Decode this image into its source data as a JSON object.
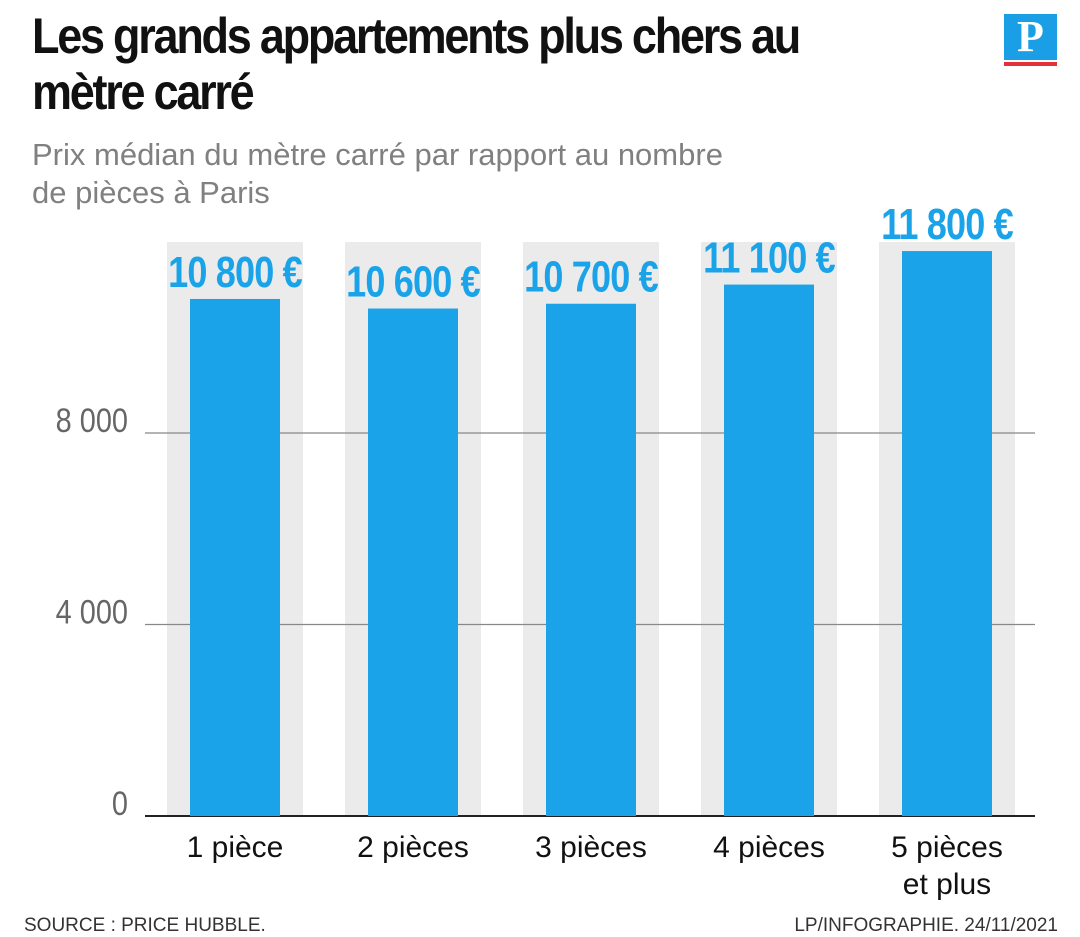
{
  "header": {
    "title": "Les grands appartements plus chers au mètre carré",
    "subtitle": "Prix médian du mètre carré par rapport au nombre de pièces à Paris"
  },
  "logo": {
    "letter": "P",
    "color": "#1a9ee5",
    "underline_color": "#e2313a"
  },
  "chart_data": {
    "type": "bar",
    "categories": [
      "1 pièce",
      "2 pièces",
      "3 pièces",
      "4 pièces",
      "5 pièces et plus"
    ],
    "values": [
      10800,
      10600,
      10700,
      11100,
      11800
    ],
    "data_labels": [
      "10 800 €",
      "10 600 €",
      "10 700 €",
      "11 100 €",
      "11 800 €"
    ],
    "title": "Les grands appartements plus chers au mètre carré",
    "subtitle": "Prix médian du mètre carré par rapport au nombre de pièces à Paris",
    "xlabel": "",
    "ylabel": "",
    "ylim": [
      0,
      12000
    ],
    "yticks": [
      0,
      4000,
      8000
    ],
    "ytick_labels": [
      "0",
      "4 000",
      "8 000"
    ],
    "grid": true,
    "colors": {
      "bar": "#1aa3e8",
      "label": "#1aa3e8",
      "column_bg": "#ebebeb",
      "gridline": "#888888"
    }
  },
  "footer": {
    "source": "SOURCE : PRICE HUBBLE.",
    "credit": "LP/INFOGRAPHIE.  24/11/2021"
  }
}
